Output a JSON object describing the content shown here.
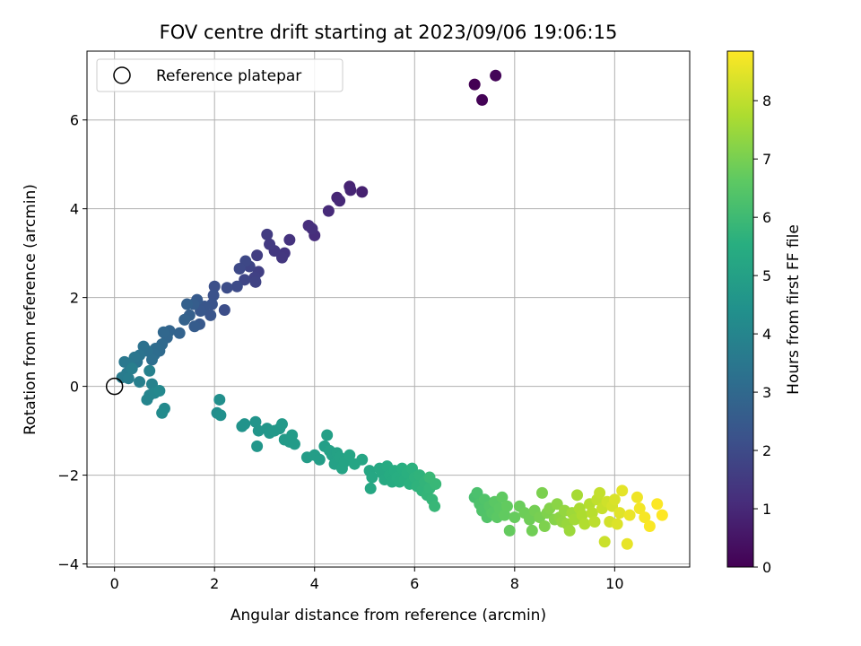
{
  "chart_data": {
    "type": "scatter",
    "title": "FOV centre drift starting at 2023/09/06 19:06:15",
    "xlabel": "Angular distance from reference (arcmin)",
    "ylabel": "Rotation from reference (arcmin)",
    "xlim": [
      -0.55,
      11.5
    ],
    "ylim": [
      -4.07,
      7.55
    ],
    "xticks": [
      0,
      2,
      4,
      6,
      8,
      10
    ],
    "yticks": [
      -4,
      -2,
      0,
      2,
      4,
      6
    ],
    "grid": true,
    "legend": {
      "location": "upper-left",
      "entries": [
        "Reference platepar"
      ]
    },
    "reference_point": {
      "x": 0,
      "y": 0
    },
    "colorbar": {
      "label": "Hours from first FF file",
      "colormap": "viridis",
      "range": [
        0,
        8.85
      ],
      "ticks": [
        0,
        1,
        2,
        3,
        4,
        5,
        6,
        7,
        8
      ]
    },
    "points": [
      [
        7.2,
        6.8,
        0.0
      ],
      [
        7.35,
        6.45,
        0.05
      ],
      [
        7.62,
        7.0,
        0.1
      ],
      [
        4.95,
        4.38,
        0.8
      ],
      [
        4.7,
        4.5,
        0.85
      ],
      [
        4.72,
        4.42,
        0.9
      ],
      [
        4.45,
        4.25,
        0.95
      ],
      [
        4.5,
        4.18,
        1.0
      ],
      [
        4.28,
        3.95,
        1.05
      ],
      [
        4.0,
        3.4,
        1.1
      ],
      [
        3.88,
        3.62,
        1.15
      ],
      [
        3.95,
        3.55,
        1.2
      ],
      [
        3.5,
        3.3,
        1.3
      ],
      [
        3.4,
        3.0,
        1.35
      ],
      [
        3.35,
        2.9,
        1.4
      ],
      [
        3.2,
        3.05,
        1.45
      ],
      [
        3.1,
        3.2,
        1.5
      ],
      [
        3.05,
        3.42,
        1.55
      ],
      [
        2.85,
        2.95,
        1.6
      ],
      [
        2.88,
        2.58,
        1.65
      ],
      [
        2.8,
        2.45,
        1.7
      ],
      [
        2.82,
        2.35,
        1.75
      ],
      [
        2.7,
        2.7,
        1.8
      ],
      [
        2.6,
        2.4,
        1.85
      ],
      [
        2.62,
        2.82,
        1.9
      ],
      [
        2.5,
        2.65,
        1.95
      ],
      [
        2.45,
        2.25,
        2.0
      ],
      [
        2.25,
        2.22,
        2.05
      ],
      [
        2.2,
        1.72,
        2.1
      ],
      [
        2.0,
        2.25,
        2.15
      ],
      [
        1.98,
        2.05,
        2.2
      ],
      [
        1.95,
        1.85,
        2.25
      ],
      [
        1.92,
        1.6,
        2.3
      ],
      [
        1.8,
        1.8,
        2.35
      ],
      [
        1.72,
        1.7,
        2.4
      ],
      [
        1.7,
        1.4,
        2.45
      ],
      [
        1.65,
        1.95,
        2.5
      ],
      [
        1.6,
        1.35,
        2.55
      ],
      [
        1.58,
        1.85,
        2.6
      ],
      [
        1.5,
        1.6,
        2.65
      ],
      [
        1.45,
        1.85,
        2.7
      ],
      [
        1.4,
        1.5,
        2.75
      ],
      [
        1.3,
        1.2,
        2.8
      ],
      [
        1.1,
        1.25,
        2.85
      ],
      [
        1.05,
        1.1,
        2.9
      ],
      [
        0.98,
        1.22,
        2.95
      ],
      [
        0.95,
        0.95,
        3.0
      ],
      [
        0.9,
        0.8,
        3.05
      ],
      [
        0.82,
        0.85,
        3.1
      ],
      [
        0.8,
        0.72,
        3.15
      ],
      [
        0.75,
        0.6,
        3.2
      ],
      [
        0.65,
        0.8,
        3.25
      ],
      [
        0.58,
        0.9,
        3.3
      ],
      [
        0.5,
        0.7,
        3.35
      ],
      [
        0.45,
        0.55,
        3.4
      ],
      [
        0.4,
        0.65,
        3.45
      ],
      [
        0.3,
        0.5,
        3.5
      ],
      [
        0.2,
        0.55,
        3.55
      ],
      [
        0.25,
        0.3,
        3.6
      ],
      [
        0.15,
        0.2,
        3.65
      ],
      [
        0.28,
        0.18,
        3.7
      ],
      [
        0.35,
        0.4,
        3.75
      ],
      [
        0.5,
        0.1,
        3.8
      ],
      [
        0.7,
        0.35,
        3.85
      ],
      [
        0.75,
        0.05,
        3.9
      ],
      [
        0.7,
        -0.2,
        3.95
      ],
      [
        0.65,
        -0.3,
        4.0
      ],
      [
        0.8,
        -0.15,
        4.05
      ],
      [
        0.9,
        -0.1,
        4.1
      ],
      [
        1.0,
        -0.5,
        4.15
      ],
      [
        0.95,
        -0.6,
        4.2
      ],
      [
        2.05,
        -0.6,
        4.3
      ],
      [
        2.1,
        -0.3,
        4.35
      ],
      [
        2.12,
        -0.65,
        4.4
      ],
      [
        2.55,
        -0.9,
        4.5
      ],
      [
        2.6,
        -0.85,
        4.52
      ],
      [
        2.82,
        -0.8,
        4.55
      ],
      [
        2.88,
        -1.0,
        4.58
      ],
      [
        2.85,
        -1.35,
        4.6
      ],
      [
        3.05,
        -0.95,
        4.62
      ],
      [
        3.1,
        -1.05,
        4.65
      ],
      [
        3.2,
        -1.0,
        4.68
      ],
      [
        3.3,
        -0.95,
        4.7
      ],
      [
        3.35,
        -0.85,
        4.72
      ],
      [
        3.4,
        -1.2,
        4.75
      ],
      [
        3.5,
        -1.25,
        4.78
      ],
      [
        3.55,
        -1.1,
        4.8
      ],
      [
        3.6,
        -1.3,
        4.82
      ],
      [
        3.85,
        -1.6,
        4.85
      ],
      [
        4.0,
        -1.55,
        4.88
      ],
      [
        4.1,
        -1.65,
        4.9
      ],
      [
        4.2,
        -1.35,
        4.92
      ],
      [
        4.25,
        -1.1,
        4.95
      ],
      [
        4.3,
        -1.45,
        4.98
      ],
      [
        4.35,
        -1.55,
        5.0
      ],
      [
        4.4,
        -1.75,
        5.02
      ],
      [
        4.45,
        -1.5,
        5.05
      ],
      [
        4.5,
        -1.6,
        5.08
      ],
      [
        4.55,
        -1.85,
        5.1
      ],
      [
        4.6,
        -1.7,
        5.12
      ],
      [
        4.7,
        -1.55,
        5.15
      ],
      [
        4.8,
        -1.75,
        5.18
      ],
      [
        4.95,
        -1.65,
        5.2
      ],
      [
        5.1,
        -1.9,
        5.22
      ],
      [
        5.15,
        -2.05,
        5.25
      ],
      [
        5.12,
        -2.3,
        5.28
      ],
      [
        5.3,
        -1.85,
        5.3
      ],
      [
        5.35,
        -1.95,
        5.32
      ],
      [
        5.4,
        -2.1,
        5.35
      ],
      [
        5.45,
        -1.8,
        5.38
      ],
      [
        5.5,
        -2.0,
        5.4
      ],
      [
        5.55,
        -2.15,
        5.42
      ],
      [
        5.6,
        -1.9,
        5.45
      ],
      [
        5.65,
        -2.05,
        5.48
      ],
      [
        5.7,
        -2.15,
        5.5
      ],
      [
        5.75,
        -1.85,
        5.52
      ],
      [
        5.8,
        -2.1,
        5.55
      ],
      [
        5.85,
        -1.95,
        5.58
      ],
      [
        5.9,
        -2.2,
        5.6
      ],
      [
        5.95,
        -1.85,
        5.62
      ],
      [
        6.0,
        -2.05,
        5.65
      ],
      [
        6.05,
        -2.25,
        5.68
      ],
      [
        6.1,
        -2.0,
        5.7
      ],
      [
        6.15,
        -2.35,
        5.72
      ],
      [
        6.2,
        -2.15,
        5.75
      ],
      [
        6.25,
        -2.45,
        5.78
      ],
      [
        6.3,
        -2.3,
        5.8
      ],
      [
        6.35,
        -2.55,
        5.82
      ],
      [
        6.4,
        -2.7,
        5.85
      ],
      [
        6.42,
        -2.2,
        5.88
      ],
      [
        6.3,
        -2.05,
        5.9
      ],
      [
        7.2,
        -2.5,
        6.2
      ],
      [
        7.25,
        -2.4,
        6.25
      ],
      [
        7.3,
        -2.65,
        6.3
      ],
      [
        7.35,
        -2.8,
        6.35
      ],
      [
        7.4,
        -2.55,
        6.38
      ],
      [
        7.45,
        -2.95,
        6.4
      ],
      [
        7.5,
        -2.7,
        6.45
      ],
      [
        7.55,
        -2.85,
        6.5
      ],
      [
        7.6,
        -2.6,
        6.55
      ],
      [
        7.65,
        -2.95,
        6.58
      ],
      [
        7.7,
        -2.75,
        6.6
      ],
      [
        7.75,
        -2.5,
        6.65
      ],
      [
        7.8,
        -2.9,
        6.68
      ],
      [
        7.85,
        -2.7,
        6.7
      ],
      [
        7.9,
        -3.25,
        6.72
      ],
      [
        8.0,
        -2.95,
        6.75
      ],
      [
        8.1,
        -2.7,
        6.8
      ],
      [
        8.2,
        -2.85,
        6.85
      ],
      [
        8.3,
        -3.0,
        6.88
      ],
      [
        8.35,
        -3.25,
        6.9
      ],
      [
        8.4,
        -2.8,
        6.95
      ],
      [
        8.5,
        -2.95,
        7.0
      ],
      [
        8.55,
        -2.4,
        7.05
      ],
      [
        8.6,
        -3.15,
        7.08
      ],
      [
        8.65,
        -2.85,
        7.1
      ],
      [
        8.7,
        -2.75,
        7.15
      ],
      [
        8.8,
        -3.0,
        7.2
      ],
      [
        8.85,
        -2.65,
        7.25
      ],
      [
        8.9,
        -2.95,
        7.3
      ],
      [
        8.95,
        -3.05,
        7.35
      ],
      [
        9.0,
        -2.8,
        7.4
      ],
      [
        9.05,
        -3.1,
        7.45
      ],
      [
        9.1,
        -3.25,
        7.5
      ],
      [
        9.15,
        -2.85,
        7.55
      ],
      [
        9.2,
        -3.0,
        7.6
      ],
      [
        9.25,
        -2.45,
        7.65
      ],
      [
        9.3,
        -2.75,
        7.7
      ],
      [
        9.35,
        -2.9,
        7.75
      ],
      [
        9.4,
        -3.1,
        7.8
      ],
      [
        9.5,
        -2.65,
        7.85
      ],
      [
        9.55,
        -2.85,
        7.9
      ],
      [
        9.6,
        -3.05,
        7.95
      ],
      [
        9.65,
        -2.55,
        8.0
      ],
      [
        9.7,
        -2.4,
        8.05
      ],
      [
        9.75,
        -2.75,
        8.1
      ],
      [
        9.8,
        -3.5,
        8.15
      ],
      [
        9.85,
        -2.6,
        8.2
      ],
      [
        9.9,
        -3.05,
        8.25
      ],
      [
        9.95,
        -2.7,
        8.3
      ],
      [
        10.0,
        -2.55,
        8.35
      ],
      [
        10.05,
        -3.1,
        8.4
      ],
      [
        10.1,
        -2.85,
        8.45
      ],
      [
        10.15,
        -2.35,
        8.5
      ],
      [
        10.25,
        -3.55,
        8.55
      ],
      [
        10.3,
        -2.9,
        8.6
      ],
      [
        10.45,
        -2.5,
        8.65
      ],
      [
        10.5,
        -2.75,
        8.7
      ],
      [
        10.6,
        -2.95,
        8.75
      ],
      [
        10.7,
        -3.15,
        8.8
      ],
      [
        10.85,
        -2.65,
        8.82
      ],
      [
        10.95,
        -2.9,
        8.85
      ]
    ]
  }
}
